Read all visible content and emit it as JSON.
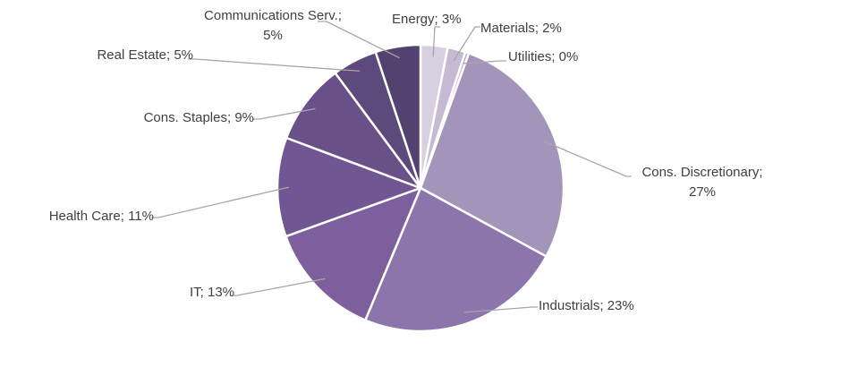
{
  "chart_data": {
    "type": "pie",
    "title": "",
    "slices": [
      {
        "label": "Energy",
        "value": 3,
        "text_lines": [
          "Energy; 3%"
        ],
        "color": "#d6d0e0"
      },
      {
        "label": "Materials",
        "value": 2,
        "text_lines": [
          "Materials; 2%"
        ],
        "color": "#c4bad4"
      },
      {
        "label": "Utilities",
        "value": 0.4,
        "text_lines": [
          "Utilities; 0%"
        ],
        "color": "#b2a7c6"
      },
      {
        "label": "Cons. Discretionary",
        "value": 27,
        "text_lines": [
          "Cons. Discretionary;",
          "27%"
        ],
        "color": "#a395b9"
      },
      {
        "label": "Industrials",
        "value": 23,
        "text_lines": [
          "Industrials; 23%"
        ],
        "color": "#8b75ab"
      },
      {
        "label": "IT",
        "value": 13,
        "text_lines": [
          "IT; 13%"
        ],
        "color": "#7d5f9d"
      },
      {
        "label": "Health Care",
        "value": 11,
        "text_lines": [
          "Health Care; 11%"
        ],
        "color": "#705793"
      },
      {
        "label": "Cons. Staples",
        "value": 9,
        "text_lines": [
          "Cons. Staples; 9%"
        ],
        "color": "#6a5089"
      },
      {
        "label": "Real Estate",
        "value": 5,
        "text_lines": [
          "Real Estate; 5%"
        ],
        "color": "#5d4a7c"
      },
      {
        "label": "Communications Serv.",
        "value": 5,
        "text_lines": [
          "Communications Serv.;",
          "5%"
        ],
        "color": "#53416f"
      }
    ],
    "legend": "none",
    "leader_line_color": "#a6a6a6"
  }
}
